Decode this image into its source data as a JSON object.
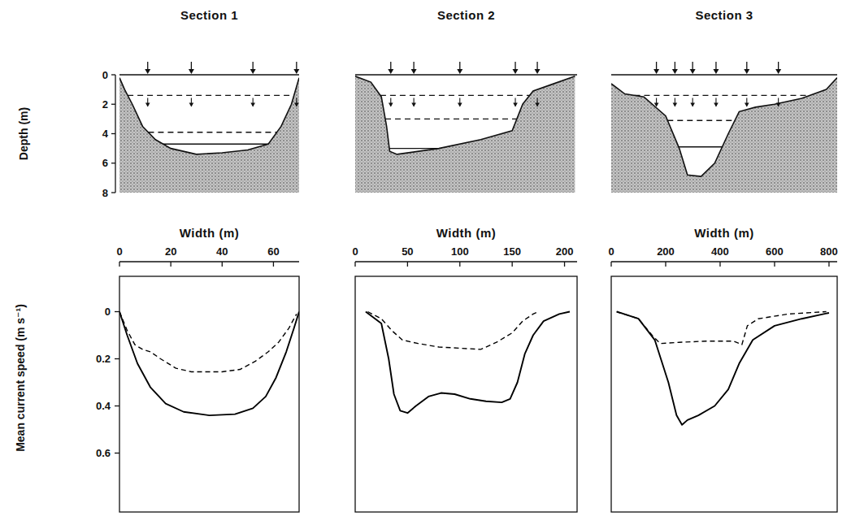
{
  "chart_data": [
    {
      "type": "area",
      "title": "Section 1",
      "y_label": "Depth (m)",
      "x": [
        0,
        2,
        5,
        9,
        14,
        20,
        30,
        40,
        50,
        58,
        63,
        67,
        70
      ],
      "values": [
        0.2,
        1.0,
        2.0,
        3.5,
        4.4,
        5.0,
        5.4,
        5.3,
        5.1,
        4.7,
        3.5,
        2.0,
        0.2
      ],
      "xlim": [
        0,
        70
      ],
      "ylim": [
        8,
        0
      ],
      "yticks": [
        0,
        2,
        4,
        6,
        8
      ],
      "tick_labels": "y",
      "stations": [
        11,
        28,
        52,
        69
      ],
      "levels": [
        {
          "value": 1.4,
          "line_style": "dashed"
        },
        {
          "value": 3.9,
          "line_style": "dashed"
        },
        {
          "value": 4.7,
          "line_style": "solid"
        }
      ]
    },
    {
      "type": "area",
      "title": "Section 2",
      "x": [
        0,
        15,
        25,
        30,
        33,
        40,
        80,
        120,
        150,
        160,
        170,
        190,
        210
      ],
      "values": [
        0.1,
        0.5,
        1.5,
        3.5,
        5.2,
        5.4,
        5.0,
        4.4,
        3.8,
        2.0,
        1.1,
        0.6,
        0.1
      ],
      "xlim": [
        0,
        212
      ],
      "ylim": [
        8,
        0
      ],
      "tick_labels": false,
      "stations": [
        34,
        56,
        100,
        153,
        174
      ],
      "levels": [
        {
          "value": 1.4,
          "line_style": "dashed"
        },
        {
          "value": 3.0,
          "line_style": "dashed"
        },
        {
          "value": 5.0,
          "line_style": "solid"
        }
      ]
    },
    {
      "type": "area",
      "title": "Section 3",
      "x": [
        0,
        50,
        120,
        200,
        250,
        280,
        330,
        380,
        430,
        470,
        530,
        600,
        700,
        790,
        830
      ],
      "values": [
        0.6,
        1.3,
        1.5,
        2.8,
        5.0,
        6.8,
        6.9,
        6.0,
        4.0,
        2.5,
        2.2,
        2.0,
        1.6,
        1.0,
        0.2
      ],
      "xlim": [
        0,
        830
      ],
      "ylim": [
        8,
        0
      ],
      "tick_labels": false,
      "stations": [
        166,
        234,
        299,
        385,
        498,
        614
      ],
      "levels": [
        {
          "value": 1.4,
          "line_style": "dashed"
        },
        {
          "value": 3.1,
          "line_style": "dashed"
        },
        {
          "value": 4.9,
          "line_style": "solid"
        }
      ]
    },
    {
      "type": "line",
      "x_label": "Width (m)",
      "y_label": "Mean current speed (m s⁻¹)",
      "xlim": [
        0,
        70
      ],
      "xticks": [
        0,
        20,
        40,
        60
      ],
      "ylim": [
        0.85,
        -0.15
      ],
      "yticks": [
        0,
        0.2,
        0.4,
        0.6
      ],
      "series": [
        {
          "color": "#000000",
          "line_style": "solid",
          "x": [
            0,
            3,
            7,
            12,
            18,
            25,
            35,
            45,
            52,
            57,
            61,
            65,
            68,
            70
          ],
          "values": [
            0,
            0.1,
            0.22,
            0.32,
            0.39,
            0.425,
            0.44,
            0.435,
            0.41,
            0.36,
            0.28,
            0.17,
            0.07,
            0
          ]
        },
        {
          "color": "#000000",
          "line_style": "dashed",
          "x": [
            0,
            3,
            6,
            9,
            12,
            16,
            22,
            28,
            40,
            47,
            53,
            58,
            62,
            66,
            69
          ],
          "values": [
            0,
            0.08,
            0.14,
            0.16,
            0.17,
            0.2,
            0.24,
            0.255,
            0.255,
            0.245,
            0.21,
            0.17,
            0.13,
            0.07,
            0.01
          ]
        }
      ]
    },
    {
      "type": "line",
      "x_label": "Width (m)",
      "xlim": [
        0,
        212
      ],
      "xticks": [
        0,
        50,
        100,
        150,
        200
      ],
      "ylim": [
        0.85,
        -0.15
      ],
      "tick_labels": "x",
      "series": [
        {
          "color": "#000000",
          "line_style": "solid",
          "x": [
            10,
            25,
            32,
            37,
            43,
            50,
            58,
            70,
            82,
            95,
            110,
            125,
            140,
            148,
            155,
            162,
            170,
            180,
            195,
            205
          ],
          "values": [
            0,
            0.05,
            0.2,
            0.35,
            0.42,
            0.43,
            0.4,
            0.36,
            0.345,
            0.35,
            0.37,
            0.38,
            0.385,
            0.37,
            0.3,
            0.18,
            0.1,
            0.04,
            0.01,
            0
          ]
        },
        {
          "color": "#000000",
          "line_style": "dashed",
          "x": [
            12,
            25,
            35,
            45,
            60,
            80,
            100,
            120,
            135,
            150,
            160,
            170,
            175
          ],
          "values": [
            0,
            0.03,
            0.08,
            0.12,
            0.135,
            0.15,
            0.155,
            0.16,
            0.13,
            0.09,
            0.04,
            0.01,
            0
          ]
        }
      ]
    },
    {
      "type": "line",
      "x_label": "Width (m)",
      "xlim": [
        0,
        830
      ],
      "xticks": [
        0,
        200,
        400,
        600,
        800
      ],
      "ylim": [
        0.85,
        -0.15
      ],
      "tick_labels": "x",
      "series": [
        {
          "color": "#000000",
          "line_style": "solid",
          "x": [
            20,
            100,
            160,
            210,
            240,
            260,
            280,
            320,
            380,
            430,
            470,
            520,
            600,
            700,
            800
          ],
          "values": [
            0,
            0.03,
            0.12,
            0.3,
            0.44,
            0.48,
            0.46,
            0.44,
            0.4,
            0.33,
            0.22,
            0.12,
            0.06,
            0.03,
            0.005
          ]
        },
        {
          "color": "#000000",
          "line_style": "dashed",
          "x": [
            20,
            100,
            150,
            180,
            250,
            350,
            450,
            480,
            500,
            540,
            650,
            790
          ],
          "values": [
            0,
            0.03,
            0.1,
            0.135,
            0.13,
            0.125,
            0.125,
            0.14,
            0.06,
            0.03,
            0.01,
            0
          ]
        }
      ]
    }
  ]
}
